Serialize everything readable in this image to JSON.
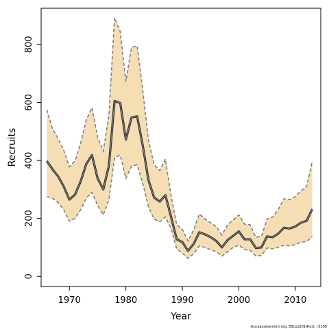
{
  "chart_data": {
    "type": "line",
    "xlabel": "Year",
    "ylabel": "Recruits",
    "xlim": [
      1965,
      2014.5
    ],
    "ylim": [
      -35,
      925
    ],
    "x_ticks": [
      1970,
      1980,
      1990,
      2000,
      2010
    ],
    "y_ticks": [
      0,
      200,
      400,
      600,
      800
    ],
    "band_fill_color": "#f5deb3",
    "line_color": "#333333",
    "band_edge_color": "#808080",
    "credit": "stockassessment.org, EBcod2014test, r3306",
    "series": [
      {
        "x": [
          1966,
          1967,
          1968,
          1969,
          1970,
          1971,
          1972,
          1973,
          1974,
          1975,
          1976,
          1977,
          1978,
          1979,
          1980,
          1981,
          1982,
          1983,
          1984,
          1985,
          1986,
          1987,
          1988,
          1989,
          1990,
          1991,
          1992,
          1993,
          1994,
          1995,
          1996,
          1997,
          1998,
          1999,
          2000,
          2001,
          2002,
          2003,
          2004,
          2005,
          2006,
          2007,
          2008,
          2009,
          2010,
          2011,
          2012,
          2013
        ],
        "estimate": [
          398,
          370,
          345,
          310,
          265,
          282,
          328,
          388,
          418,
          338,
          300,
          382,
          605,
          598,
          472,
          548,
          552,
          450,
          332,
          272,
          258,
          280,
          205,
          128,
          118,
          88,
          112,
          152,
          145,
          135,
          122,
          100,
          125,
          140,
          155,
          128,
          128,
          98,
          100,
          138,
          135,
          148,
          168,
          165,
          172,
          185,
          192,
          232
        ],
        "lower": [
          275,
          270,
          255,
          230,
          190,
          200,
          230,
          270,
          290,
          245,
          212,
          265,
          410,
          418,
          338,
          380,
          385,
          320,
          240,
          198,
          188,
          205,
          165,
          95,
          80,
          62,
          78,
          105,
          100,
          92,
          85,
          70,
          85,
          100,
          108,
          92,
          90,
          70,
          72,
          98,
          95,
          100,
          108,
          105,
          110,
          118,
          120,
          138
        ],
        "upper": [
          575,
          510,
          475,
          435,
          378,
          398,
          460,
          540,
          582,
          480,
          432,
          555,
          892,
          845,
          672,
          790,
          795,
          640,
          470,
          385,
          365,
          405,
          278,
          178,
          162,
          122,
          160,
          215,
          198,
          185,
          172,
          143,
          178,
          195,
          212,
          180,
          178,
          135,
          138,
          198,
          205,
          232,
          268,
          265,
          275,
          295,
          310,
          398
        ]
      }
    ]
  }
}
